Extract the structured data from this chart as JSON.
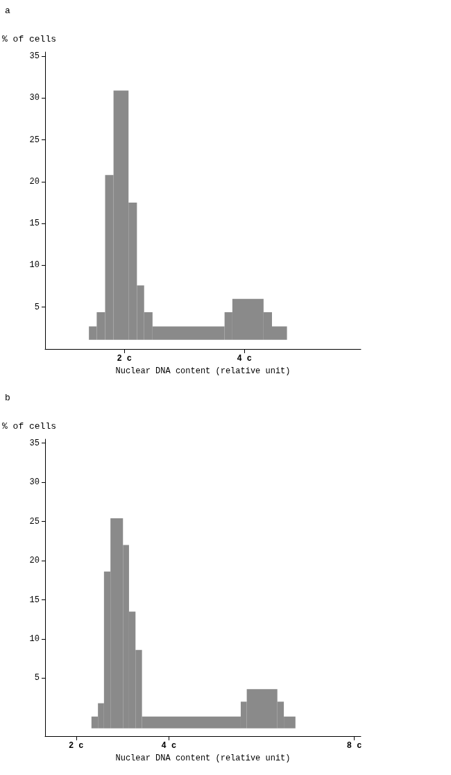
{
  "chart_data": [
    {
      "type": "histogram",
      "title": "a",
      "ylabel": "% of cells",
      "xlabel": "Nuclear DNA content (relative unit)",
      "color": "#8a8a8a",
      "bins": [
        1.41,
        1.54,
        1.68,
        1.82,
        2.07,
        2.21,
        2.33,
        2.47,
        3.67,
        3.8,
        4.32,
        4.46,
        4.71
      ],
      "base": [
        1.1,
        1.1,
        1.1,
        1.1,
        1.1,
        1.1,
        1.1,
        1.1,
        1.1,
        1.1,
        1.1,
        1.1
      ],
      "values": [
        1.6,
        3.3,
        19.7,
        29.8,
        16.4,
        6.5,
        3.3,
        1.6,
        3.3,
        4.9,
        3.3,
        1.6
      ],
      "xlim": [
        0.68,
        5.94
      ],
      "xticks": [
        {
          "value": 2,
          "label": "2 c"
        },
        {
          "value": 4,
          "label": "4 c"
        }
      ],
      "ylim": [
        0,
        35.5
      ],
      "yticks": [
        5,
        10,
        15,
        20,
        25,
        30,
        35
      ]
    },
    {
      "type": "histogram",
      "title": "b",
      "ylabel": "% of cells",
      "xlabel": "Nuclear DNA content (relative unit)",
      "color": "#8a8a8a",
      "bins": [
        2.33,
        2.47,
        2.6,
        2.74,
        3.01,
        3.14,
        3.28,
        3.42,
        5.55,
        5.68,
        6.34,
        6.48,
        6.73
      ],
      "base": [
        -1.4,
        -1.4,
        -1.4,
        -1.4,
        -1.4,
        -1.4,
        -1.4,
        -1.4,
        -1.4,
        -1.4,
        -1.4,
        -1.4
      ],
      "values": [
        1.5,
        3.2,
        20.0,
        26.8,
        23.4,
        14.9,
        10.0,
        1.5,
        3.4,
        5.0,
        3.4,
        1.5
      ],
      "xlim": [
        1.33,
        8.14
      ],
      "xticks": [
        {
          "value": 2,
          "label": "2 c"
        },
        {
          "value": 4,
          "label": "4 c"
        },
        {
          "value": 8,
          "label": "8 c"
        }
      ],
      "ylim": [
        -2.4,
        35.5
      ],
      "yticks": [
        5,
        10,
        15,
        20,
        25,
        30,
        35
      ]
    }
  ]
}
